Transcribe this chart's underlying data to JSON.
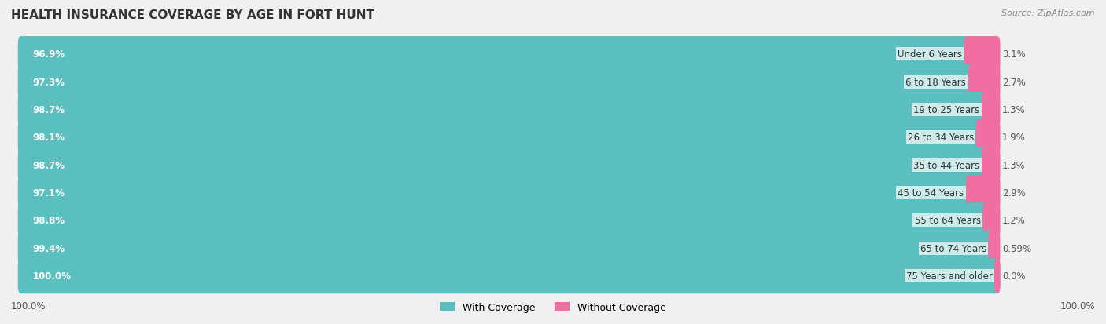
{
  "title": "HEALTH INSURANCE COVERAGE BY AGE IN FORT HUNT",
  "source": "Source: ZipAtlas.com",
  "categories": [
    "Under 6 Years",
    "6 to 18 Years",
    "19 to 25 Years",
    "26 to 34 Years",
    "35 to 44 Years",
    "45 to 54 Years",
    "55 to 64 Years",
    "65 to 74 Years",
    "75 Years and older"
  ],
  "with_coverage": [
    96.9,
    97.3,
    98.7,
    98.1,
    98.7,
    97.1,
    98.8,
    99.4,
    100.0
  ],
  "without_coverage": [
    3.1,
    2.7,
    1.3,
    1.9,
    1.3,
    2.9,
    1.2,
    0.59,
    0.0
  ],
  "with_labels": [
    "96.9%",
    "97.3%",
    "98.7%",
    "98.1%",
    "98.7%",
    "97.1%",
    "98.8%",
    "99.4%",
    "100.0%"
  ],
  "without_labels": [
    "3.1%",
    "2.7%",
    "1.3%",
    "1.9%",
    "1.3%",
    "2.9%",
    "1.2%",
    "0.59%",
    "0.0%"
  ],
  "color_with": "#5BBFBF",
  "color_without": "#F06FA0",
  "bg_color": "#f0f0f0",
  "bar_bg_color": "#e8e8e8",
  "bar_row_bg": "#e8e8e8",
  "title_fontsize": 11,
  "label_fontsize": 8.5,
  "legend_fontsize": 9,
  "source_fontsize": 8,
  "axis_label_left": "100.0%",
  "axis_label_right": "100.0%"
}
